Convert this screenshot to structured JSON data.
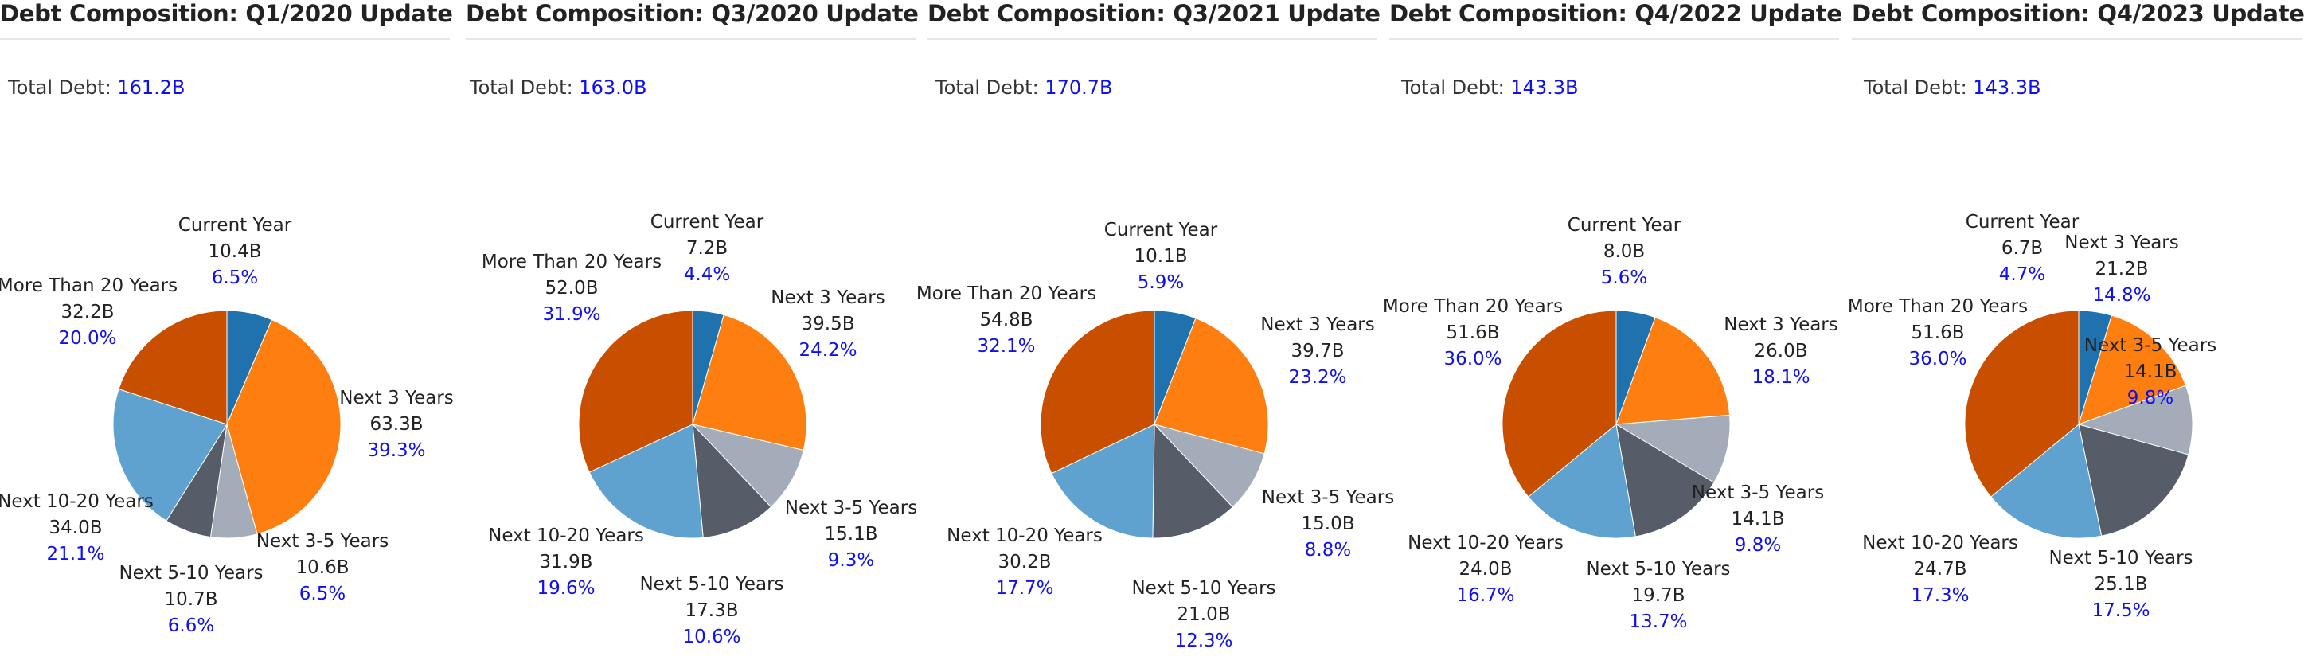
{
  "colors": {
    "Current Year": "#1f72ad",
    "Next 3 Years": "#fe7f10",
    "Next 3-5 Years": "#a3acb8",
    "Next 5-10 Years": "#575d68",
    "Next 10-20 Years": "#5fa2d0",
    "More Than 20 Years": "#c84e00",
    "percent_text": "#1010ee",
    "title_text": "#222222"
  },
  "total_label": "Total Debt:",
  "panels": [
    {
      "title": "Debt Composition: Q1/2020 Update",
      "total": "161.2B"
    },
    {
      "title": "Debt Composition: Q3/2020 Update",
      "total": "163.0B"
    },
    {
      "title": "Debt Composition: Q3/2021 Update",
      "total": "170.7B"
    },
    {
      "title": "Debt Composition: Q4/2022 Update",
      "total": "143.3B"
    },
    {
      "title": "Debt Composition: Q4/2023 Update",
      "total": "143.3B"
    }
  ],
  "chart_data": [
    {
      "type": "pie",
      "title": "Debt Composition: Q1/2020 Update",
      "slices": [
        {
          "label": "Current Year",
          "value": 10.4,
          "value_text": "10.4B",
          "pct": 6.5,
          "pct_text": "6.5%"
        },
        {
          "label": "Next 3 Years",
          "value": 63.3,
          "value_text": "63.3B",
          "pct": 39.3,
          "pct_text": "39.3%"
        },
        {
          "label": "Next 3-5 Years",
          "value": 10.6,
          "value_text": "10.6B",
          "pct": 6.5,
          "pct_text": "6.5%"
        },
        {
          "label": "Next 5-10 Years",
          "value": 10.7,
          "value_text": "10.7B",
          "pct": 6.6,
          "pct_text": "6.6%"
        },
        {
          "label": "Next 10-20 Years",
          "value": 34.0,
          "value_text": "34.0B",
          "pct": 21.1,
          "pct_text": "21.1%"
        },
        {
          "label": "More Than 20 Years",
          "value": 32.2,
          "value_text": "32.2B",
          "pct": 20.0,
          "pct_text": "20.0%"
        }
      ]
    },
    {
      "type": "pie",
      "title": "Debt Composition: Q3/2020 Update",
      "slices": [
        {
          "label": "Current Year",
          "value": 7.2,
          "value_text": "7.2B",
          "pct": 4.4,
          "pct_text": "4.4%"
        },
        {
          "label": "Next 3 Years",
          "value": 39.5,
          "value_text": "39.5B",
          "pct": 24.2,
          "pct_text": "24.2%"
        },
        {
          "label": "Next 3-5 Years",
          "value": 15.1,
          "value_text": "15.1B",
          "pct": 9.3,
          "pct_text": "9.3%"
        },
        {
          "label": "Next 5-10 Years",
          "value": 17.3,
          "value_text": "17.3B",
          "pct": 10.6,
          "pct_text": "10.6%"
        },
        {
          "label": "Next 10-20 Years",
          "value": 31.9,
          "value_text": "31.9B",
          "pct": 19.6,
          "pct_text": "19.6%"
        },
        {
          "label": "More Than 20 Years",
          "value": 52.0,
          "value_text": "52.0B",
          "pct": 31.9,
          "pct_text": "31.9%"
        }
      ]
    },
    {
      "type": "pie",
      "title": "Debt Composition: Q3/2021 Update",
      "slices": [
        {
          "label": "Current Year",
          "value": 10.1,
          "value_text": "10.1B",
          "pct": 5.9,
          "pct_text": "5.9%"
        },
        {
          "label": "Next 3 Years",
          "value": 39.7,
          "value_text": "39.7B",
          "pct": 23.2,
          "pct_text": "23.2%"
        },
        {
          "label": "Next 3-5 Years",
          "value": 15.0,
          "value_text": "15.0B",
          "pct": 8.8,
          "pct_text": "8.8%"
        },
        {
          "label": "Next 5-10 Years",
          "value": 21.0,
          "value_text": "21.0B",
          "pct": 12.3,
          "pct_text": "12.3%"
        },
        {
          "label": "Next 10-20 Years",
          "value": 30.2,
          "value_text": "30.2B",
          "pct": 17.7,
          "pct_text": "17.7%"
        },
        {
          "label": "More Than 20 Years",
          "value": 54.8,
          "value_text": "54.8B",
          "pct": 32.1,
          "pct_text": "32.1%"
        }
      ]
    },
    {
      "type": "pie",
      "title": "Debt Composition: Q4/2022 Update",
      "slices": [
        {
          "label": "Current Year",
          "value": 8.0,
          "value_text": "8.0B",
          "pct": 5.6,
          "pct_text": "5.6%"
        },
        {
          "label": "Next 3 Years",
          "value": 26.0,
          "value_text": "26.0B",
          "pct": 18.1,
          "pct_text": "18.1%"
        },
        {
          "label": "Next 3-5 Years",
          "value": 14.1,
          "value_text": "14.1B",
          "pct": 9.8,
          "pct_text": "9.8%"
        },
        {
          "label": "Next 5-10 Years",
          "value": 19.7,
          "value_text": "19.7B",
          "pct": 13.7,
          "pct_text": "13.7%"
        },
        {
          "label": "Next 10-20 Years",
          "value": 24.0,
          "value_text": "24.0B",
          "pct": 16.7,
          "pct_text": "16.7%"
        },
        {
          "label": "More Than 20 Years",
          "value": 51.6,
          "value_text": "51.6B",
          "pct": 36.0,
          "pct_text": "36.0%"
        }
      ]
    },
    {
      "type": "pie",
      "title": "Debt Composition: Q4/2023 Update",
      "slices": [
        {
          "label": "Current Year",
          "value": 6.7,
          "value_text": "6.7B",
          "pct": 4.7,
          "pct_text": "4.7%"
        },
        {
          "label": "Next 3 Years",
          "value": 21.2,
          "value_text": "21.2B",
          "pct": 14.8,
          "pct_text": "14.8%"
        },
        {
          "label": "Next 3-5 Years",
          "value": 14.1,
          "value_text": "14.1B",
          "pct": 9.8,
          "pct_text": "9.8%"
        },
        {
          "label": "Next 5-10 Years",
          "value": 25.1,
          "value_text": "25.1B",
          "pct": 17.5,
          "pct_text": "17.5%"
        },
        {
          "label": "Next 10-20 Years",
          "value": 24.7,
          "value_text": "24.7B",
          "pct": 17.3,
          "pct_text": "17.3%"
        },
        {
          "label": "More Than 20 Years",
          "value": 51.6,
          "value_text": "51.6B",
          "pct": 36.0,
          "pct_text": "36.0%"
        }
      ]
    }
  ]
}
